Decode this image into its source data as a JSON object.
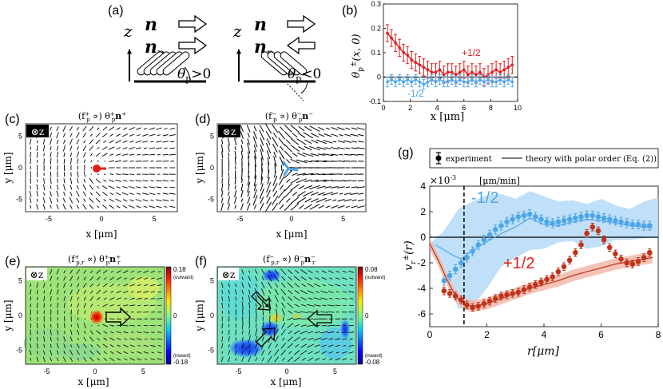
{
  "panel_a": {
    "label": "(a)",
    "n": "n",
    "np": "n",
    "np_sub": "p",
    "z": "z",
    "theta_pos": "θ",
    "theta_pos_sub": "p",
    "theta_pos_rel": ">0",
    "theta_neg": "θ",
    "theta_neg_sub": "p",
    "theta_neg_rel": "<0"
  },
  "panel_b": {
    "label": "(b)",
    "ylabel": "θ",
    "ylabel_sup": "±",
    "ylabel_sub": "p",
    "ylabel_args": "(x, 0)",
    "xlabel": "x [μm]",
    "annot_pos": "+1/2",
    "annot_neg": "-1/2"
  },
  "panel_c": {
    "label": "(c)",
    "title": "(f",
    "title_sup": "+",
    "title_sub": "p",
    "title_rest": " ∝) θ",
    "title_rest_sup": "+",
    "title_rest_sub": "p",
    "title_vec": "n",
    "title_vec_sup": "+",
    "zbadge": "⊗z",
    "ylabel": "y [μm]",
    "xlabel": "x [μm]"
  },
  "panel_d": {
    "label": "(d)",
    "title": "(f",
    "title_sup": "−",
    "title_sub": "p",
    "title_rest": " ∝) θ",
    "title_rest_sup": "−",
    "title_rest_sub": "p",
    "title_vec": "n",
    "title_vec_sup": "−",
    "zbadge": "⊗z",
    "ylabel": "y [μm]",
    "xlabel": "x [μm]"
  },
  "panel_e": {
    "label": "(e)",
    "title": "(f",
    "title_sup": "+",
    "title_sub": "p,r",
    "title_rest": " ∝) θ",
    "title_rest_sup": "+",
    "title_rest_sub": "p",
    "title_vec": "n",
    "title_vec_sup": "+",
    "title_vec_sub": "r",
    "zbadge": "⊗z",
    "ylabel": "y [μm]",
    "xlabel": "x [μm]",
    "cbar_max": "0.18",
    "cbar_zero": "0",
    "cbar_min": "-0.18",
    "cbar_top_note": "(outward)",
    "cbar_bottom_note": "(inward)"
  },
  "panel_f": {
    "label": "(f)",
    "title": "(f",
    "title_sup": "−",
    "title_sub": "p,r",
    "title_rest": " ∝) θ",
    "title_rest_sup": "−",
    "title_rest_sub": "p",
    "title_vec": "n",
    "title_vec_sup": "−",
    "title_vec_sub": "r",
    "zbadge": "⊗z",
    "ylabel": "y [μm]",
    "xlabel": "x [μm]",
    "cbar_max": "0.08",
    "cbar_zero": "0",
    "cbar_min": "-0.08",
    "cbar_top_note": "(outward)",
    "cbar_bottom_note": "(inward)"
  },
  "panel_g": {
    "label": "(g)",
    "legend_experiment": "experiment",
    "legend_theory": "theory with polar order (Eq. (2))",
    "exponent": "×10",
    "exponent_sup": "-3",
    "units": "[μm/min]",
    "ylabel": "v",
    "ylabel_sup": "±",
    "ylabel_sub": "r",
    "ylabel_args": "(r)",
    "xlabel": "r[μm]",
    "annot_neg": "-1/2",
    "annot_pos": "+1/2"
  },
  "colors": {
    "plus": "#e11d1d",
    "minus": "#4da6e8",
    "plus_dark": "#c0321a",
    "minus_band": "#b9dcf7",
    "plus_band": "#f2b9a8"
  },
  "chart_data": [
    {
      "id": "b",
      "type": "line",
      "xlabel": "x [μm]",
      "ylabel": "θp±(x,0)",
      "xlim": [
        0,
        10
      ],
      "ylim": [
        -0.1,
        0.3
      ],
      "xticks": [
        0,
        2,
        4,
        6,
        8,
        10
      ],
      "yticks": [
        -0.1,
        0,
        0.1,
        0.2,
        0.3
      ],
      "series": [
        {
          "name": "+1/2",
          "x": [
            0.3,
            0.6,
            0.9,
            1.2,
            1.5,
            1.8,
            2.1,
            2.4,
            2.7,
            3.0,
            3.3,
            3.6,
            3.9,
            4.2,
            4.5,
            4.8,
            5.1,
            5.4,
            5.7,
            6.0,
            6.3,
            6.6,
            6.9,
            7.2,
            7.5,
            7.8,
            8.1,
            8.4,
            8.7,
            9.0,
            9.3,
            9.6
          ],
          "values": [
            0.18,
            0.16,
            0.14,
            0.12,
            0.1,
            0.09,
            0.07,
            0.06,
            0.05,
            0.04,
            0.03,
            0.02,
            0.02,
            0.03,
            0.01,
            0.02,
            0.02,
            0.01,
            0.02,
            0.03,
            0.01,
            0.02,
            0.01,
            0.02,
            0.0,
            0.01,
            0.02,
            0.03,
            0.02,
            0.03,
            0.04,
            0.05
          ]
        },
        {
          "name": "-1/2",
          "x": [
            0.3,
            0.6,
            0.9,
            1.2,
            1.5,
            1.8,
            2.1,
            2.4,
            2.7,
            3.0,
            3.3,
            3.6,
            3.9,
            4.2,
            4.5,
            4.8,
            5.1,
            5.4,
            5.7,
            6.0,
            6.3,
            6.6,
            6.9,
            7.2,
            7.5,
            7.8,
            8.1,
            8.4,
            8.7,
            9.0,
            9.3,
            9.6
          ],
          "values": [
            -0.02,
            -0.01,
            -0.02,
            -0.01,
            -0.02,
            -0.01,
            -0.02,
            -0.01,
            -0.02,
            -0.03,
            -0.02,
            -0.01,
            -0.02,
            -0.01,
            -0.02,
            -0.02,
            -0.01,
            -0.02,
            -0.01,
            -0.02,
            -0.02,
            -0.01,
            -0.02,
            -0.01,
            -0.02,
            -0.01,
            -0.02,
            -0.02,
            -0.01,
            -0.02,
            -0.01,
            -0.02
          ]
        }
      ]
    },
    {
      "id": "g",
      "type": "line",
      "xlabel": "r[μm]",
      "ylabel": "v̄r±(r) ×10^-3 [μm/min]",
      "xlim": [
        0,
        8
      ],
      "ylim": [
        -7,
        4
      ],
      "xticks": [
        0,
        2,
        4,
        6,
        8
      ],
      "yticks": [
        -6,
        -4,
        -2,
        0,
        2,
        4
      ],
      "vline": 1.2,
      "series": [
        {
          "name": "-1/2 experiment",
          "x": [
            0.5,
            0.7,
            0.9,
            1.1,
            1.3,
            1.5,
            1.7,
            1.9,
            2.1,
            2.3,
            2.5,
            2.7,
            2.9,
            3.1,
            3.3,
            3.5,
            3.7,
            3.9,
            4.1,
            4.3,
            4.5,
            4.7,
            4.9,
            5.1,
            5.3,
            5.5,
            5.7,
            5.9,
            6.1,
            6.3,
            6.5,
            6.7,
            6.9,
            7.1,
            7.3,
            7.5,
            7.7
          ],
          "values": [
            -3.4,
            -3.0,
            -2.5,
            -2.0,
            -1.6,
            -1.1,
            -0.6,
            -0.2,
            0.2,
            0.6,
            0.9,
            1.2,
            1.4,
            1.6,
            1.7,
            1.8,
            1.6,
            1.4,
            1.2,
            1.1,
            1.2,
            1.3,
            1.4,
            1.5,
            1.6,
            1.7,
            1.7,
            1.6,
            1.5,
            1.4,
            1.3,
            1.2,
            1.1,
            1.0,
            1.0,
            0.9,
            0.9
          ]
        },
        {
          "name": "+1/2 experiment",
          "x": [
            0.5,
            0.7,
            0.9,
            1.1,
            1.3,
            1.5,
            1.7,
            1.9,
            2.1,
            2.3,
            2.5,
            2.7,
            2.9,
            3.1,
            3.3,
            3.5,
            3.7,
            3.9,
            4.1,
            4.3,
            4.5,
            4.7,
            4.9,
            5.1,
            5.3,
            5.5,
            5.7,
            5.9,
            6.1,
            6.3,
            6.5,
            6.7,
            6.9,
            7.1,
            7.3,
            7.5,
            7.7
          ],
          "values": [
            -4.2,
            -4.4,
            -4.6,
            -4.9,
            -5.3,
            -5.5,
            -5.4,
            -5.2,
            -5.0,
            -4.8,
            -4.6,
            -4.5,
            -4.4,
            -4.3,
            -4.1,
            -3.9,
            -3.7,
            -3.5,
            -3.3,
            -3.1,
            -2.7,
            -2.3,
            -1.8,
            -1.2,
            -0.6,
            0.3,
            0.8,
            0.5,
            -0.2,
            -0.8,
            -1.3,
            -1.7,
            -2.0,
            -2.1,
            -1.9,
            -1.6,
            -1.2
          ]
        },
        {
          "name": "-1/2 theory",
          "x": [
            0.2,
            0.5,
            0.8,
            1.1,
            1.4,
            1.8,
            2.2,
            2.6,
            3.0,
            3.5,
            4.0,
            4.5,
            5.0,
            5.5,
            6.0,
            6.5,
            7.0,
            7.5,
            7.8
          ],
          "values": [
            -0.6,
            -1.0,
            -1.4,
            -1.7,
            -1.2,
            -0.6,
            -0.1,
            0.4,
            0.8,
            1.5,
            1.0,
            0.9,
            1.2,
            1.4,
            1.3,
            1.1,
            0.9,
            0.8,
            0.7
          ]
        },
        {
          "name": "+1/2 theory",
          "x": [
            0.0,
            0.3,
            0.6,
            0.9,
            1.2,
            1.5,
            2.0,
            2.5,
            3.0,
            3.5,
            4.0,
            4.5,
            5.0,
            5.5,
            6.0,
            6.5,
            7.0,
            7.5,
            7.8
          ],
          "values": [
            -0.5,
            -1.8,
            -3.3,
            -4.6,
            -5.2,
            -5.4,
            -5.2,
            -4.8,
            -4.4,
            -4.0,
            -3.7,
            -3.4,
            -3.0,
            -2.7,
            -2.4,
            -2.1,
            -1.9,
            -1.7,
            -1.6
          ]
        }
      ]
    }
  ]
}
